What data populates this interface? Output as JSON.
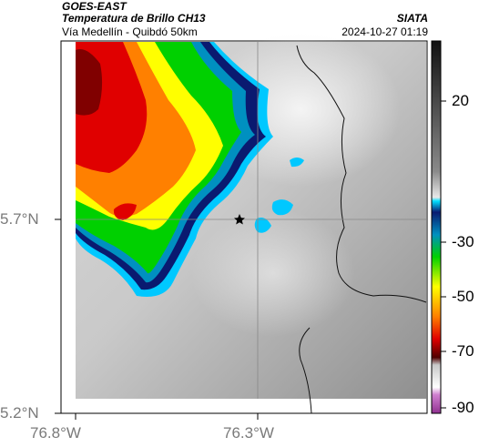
{
  "header": {
    "satellite": "GOES-EAST",
    "product": "Temperatura de Brillo CH13",
    "region": "Vía Medellín - Quibdó 50km",
    "organization": "SIATA",
    "timestamp": "2024-10-27 01:19"
  },
  "map": {
    "lat_ticks": [
      "5.7°N",
      "5.2°N"
    ],
    "lon_ticks": [
      "76.8°W",
      "76.3°W"
    ],
    "marker_icon": "star-icon"
  },
  "colorbar": {
    "tick_labels": [
      "20",
      "-30",
      "-50",
      "-70",
      "-90"
    ],
    "colors": {
      "dark": "#1a1a1a",
      "light_gray": "#e0e0e0",
      "cyan": "#00c8ff",
      "navy": "#0a1a70",
      "green": "#00d000",
      "yellow": "#ffff00",
      "orange": "#ff8000",
      "red": "#e00000",
      "darkred": "#600000",
      "magenta": "#b040b0"
    }
  }
}
